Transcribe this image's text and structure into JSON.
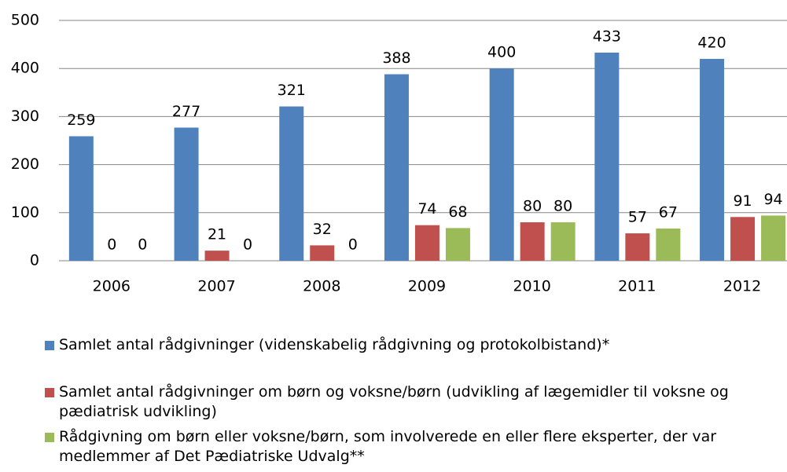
{
  "chart_data": {
    "type": "bar",
    "categories": [
      "2006",
      "2007",
      "2008",
      "2009",
      "2010",
      "2011",
      "2012"
    ],
    "series": [
      {
        "name": "Samlet antal rådgivninger (videnskabelig rådgivning og protokolbistand)*",
        "color": "#4f81bd",
        "values": [
          259,
          277,
          321,
          388,
          400,
          433,
          420
        ]
      },
      {
        "name": "Samlet antal rådgivninger om børn og voksne/børn (udvikling af lægemidler til voksne og pædiatrisk udvikling)",
        "color": "#c0504d",
        "values": [
          0,
          21,
          32,
          74,
          80,
          57,
          91
        ]
      },
      {
        "name": "Rådgivning om børn eller voksne/børn, som involverede en eller flere eksperter, der var medlemmer af Det Pædiatriske Udvalg**",
        "color": "#9bbb59",
        "values": [
          0,
          0,
          0,
          68,
          80,
          67,
          94
        ]
      }
    ],
    "ylim": [
      0,
      500
    ],
    "yticks": [
      0,
      100,
      200,
      300,
      400,
      500
    ],
    "grid": true,
    "legend": "bottom"
  }
}
